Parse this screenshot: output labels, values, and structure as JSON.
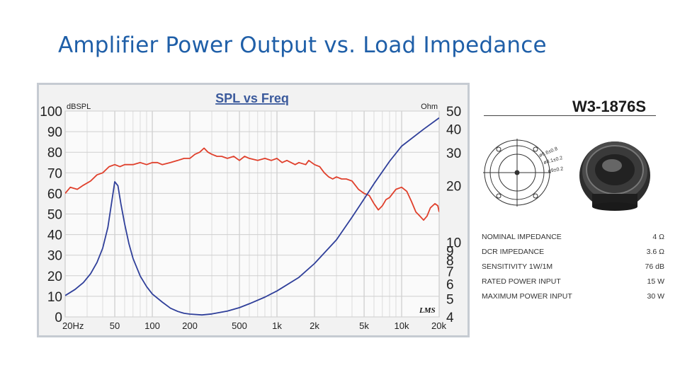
{
  "slide": {
    "title": "Amplifier Power Output vs. Load Impedance"
  },
  "colors": {
    "title": "#1f5fa8",
    "spl_curve": "#e0402c",
    "impedance_curve": "#2f3f9a",
    "chart_background": "#f2f2f2",
    "chart_frame": "#c6cbd2",
    "chart_title": "#3b5a9c"
  },
  "chart_data": {
    "type": "line",
    "title": "SPL vs Freq",
    "ylabel": "dBSPL",
    "y2label": "Ohm",
    "watermark": "LMS",
    "x_scale": "log",
    "xlim": [
      20,
      20000
    ],
    "ylim": [
      0,
      100
    ],
    "y2_scale": "log",
    "y2lim": [
      4,
      50
    ],
    "grid": true,
    "x_ticks": [
      {
        "value": 20,
        "label": "20Hz"
      },
      {
        "value": 50,
        "label": "50"
      },
      {
        "value": 100,
        "label": "100"
      },
      {
        "value": 200,
        "label": "200"
      },
      {
        "value": 500,
        "label": "500"
      },
      {
        "value": 1000,
        "label": "1k"
      },
      {
        "value": 2000,
        "label": "2k"
      },
      {
        "value": 5000,
        "label": "5k"
      },
      {
        "value": 10000,
        "label": "10k"
      },
      {
        "value": 20000,
        "label": "20k"
      }
    ],
    "y_ticks": [
      100,
      90,
      80,
      70,
      60,
      50,
      40,
      30,
      20,
      10,
      0
    ],
    "y2_ticks": [
      50,
      40,
      30,
      20,
      10,
      9,
      8,
      7,
      6,
      5,
      4
    ],
    "series": [
      {
        "name": "SPL",
        "axis": "left",
        "points": [
          [
            20,
            60
          ],
          [
            22,
            63
          ],
          [
            25,
            62
          ],
          [
            28,
            64
          ],
          [
            32,
            66
          ],
          [
            36,
            69
          ],
          [
            40,
            70
          ],
          [
            45,
            73
          ],
          [
            50,
            74
          ],
          [
            55,
            73
          ],
          [
            60,
            74
          ],
          [
            70,
            74
          ],
          [
            80,
            75
          ],
          [
            90,
            74
          ],
          [
            100,
            75
          ],
          [
            110,
            75
          ],
          [
            120,
            74
          ],
          [
            140,
            75
          ],
          [
            160,
            76
          ],
          [
            180,
            77
          ],
          [
            200,
            77
          ],
          [
            220,
            79
          ],
          [
            240,
            80
          ],
          [
            260,
            82
          ],
          [
            280,
            80
          ],
          [
            300,
            79
          ],
          [
            330,
            78
          ],
          [
            360,
            78
          ],
          [
            400,
            77
          ],
          [
            450,
            78
          ],
          [
            500,
            76
          ],
          [
            550,
            78
          ],
          [
            600,
            77
          ],
          [
            700,
            76
          ],
          [
            800,
            77
          ],
          [
            900,
            76
          ],
          [
            1000,
            77
          ],
          [
            1100,
            75
          ],
          [
            1200,
            76
          ],
          [
            1400,
            74
          ],
          [
            1500,
            75
          ],
          [
            1700,
            74
          ],
          [
            1800,
            76
          ],
          [
            2000,
            74
          ],
          [
            2200,
            73
          ],
          [
            2400,
            70
          ],
          [
            2600,
            68
          ],
          [
            2800,
            67
          ],
          [
            3000,
            68
          ],
          [
            3300,
            67
          ],
          [
            3600,
            67
          ],
          [
            4000,
            66
          ],
          [
            4500,
            62
          ],
          [
            5000,
            60
          ],
          [
            5500,
            59
          ],
          [
            6000,
            55
          ],
          [
            6500,
            52
          ],
          [
            7000,
            54
          ],
          [
            7500,
            57
          ],
          [
            8000,
            58
          ],
          [
            9000,
            62
          ],
          [
            10000,
            63
          ],
          [
            11000,
            61
          ],
          [
            12000,
            56
          ],
          [
            13000,
            51
          ],
          [
            14000,
            49
          ],
          [
            15000,
            47
          ],
          [
            16000,
            49
          ],
          [
            17000,
            53
          ],
          [
            18500,
            55
          ],
          [
            19500,
            54
          ],
          [
            20000,
            51
          ]
        ]
      },
      {
        "name": "Impedance",
        "axis": "right",
        "points": [
          [
            20,
            5.2
          ],
          [
            24,
            5.6
          ],
          [
            28,
            6.1
          ],
          [
            32,
            6.8
          ],
          [
            36,
            7.8
          ],
          [
            40,
            9.3
          ],
          [
            44,
            12
          ],
          [
            47,
            16
          ],
          [
            50,
            21
          ],
          [
            53,
            20
          ],
          [
            56,
            16
          ],
          [
            60,
            12.5
          ],
          [
            65,
            9.8
          ],
          [
            70,
            8.2
          ],
          [
            80,
            6.6
          ],
          [
            90,
            5.8
          ],
          [
            100,
            5.3
          ],
          [
            120,
            4.8
          ],
          [
            140,
            4.45
          ],
          [
            160,
            4.28
          ],
          [
            180,
            4.18
          ],
          [
            200,
            4.14
          ],
          [
            250,
            4.1
          ],
          [
            300,
            4.15
          ],
          [
            400,
            4.3
          ],
          [
            500,
            4.48
          ],
          [
            600,
            4.7
          ],
          [
            800,
            5.1
          ],
          [
            1000,
            5.5
          ],
          [
            1500,
            6.5
          ],
          [
            2000,
            7.7
          ],
          [
            3000,
            10.3
          ],
          [
            4000,
            13.6
          ],
          [
            5000,
            17
          ],
          [
            6000,
            20.5
          ],
          [
            8000,
            27
          ],
          [
            10000,
            32.5
          ],
          [
            15000,
            40
          ],
          [
            20000,
            46
          ]
        ]
      }
    ]
  },
  "speaker": {
    "model": "W3-1876S",
    "drawing_labels": [
      "ø6.6±0.8",
      "ø8.1±0.2",
      "ø9±0.2"
    ],
    "specs": [
      {
        "label": "NOMINAL  IMPEDANCE",
        "value": "4  Ω"
      },
      {
        "label": "DCR  IMPEDANCE",
        "value": "3.6  Ω"
      },
      {
        "label": "SENSITIVITY  1W/1M",
        "value": "76  dB"
      },
      {
        "label": "RATED POWER INPUT",
        "value": "15  W"
      },
      {
        "label": "MAXIMUM POWER INPUT",
        "value": "30  W"
      }
    ]
  }
}
